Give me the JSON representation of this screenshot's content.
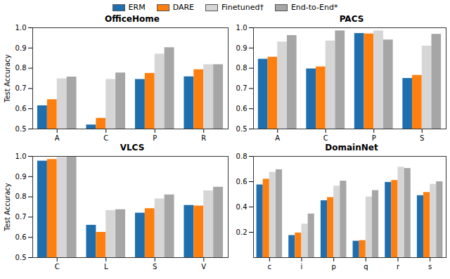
{
  "chart_data": [
    {
      "type": "bar",
      "title": "OfficeHome",
      "y_label": "Test Accuracy",
      "categories": [
        "A",
        "C",
        "P",
        "R"
      ],
      "series": [
        {
          "name": "ERM",
          "color": "#1f6fae",
          "values": [
            0.615,
            0.52,
            0.745,
            0.758
          ]
        },
        {
          "name": "DARE",
          "color": "#ff7f0e",
          "values": [
            0.645,
            0.553,
            0.775,
            0.793
          ]
        },
        {
          "name": "Finetuned†",
          "color": "#d6d6d6",
          "values": [
            0.748,
            0.745,
            0.87,
            0.818
          ]
        },
        {
          "name": "End-to-End*",
          "color": "#a6a6a6",
          "values": [
            0.757,
            0.777,
            0.902,
            0.818
          ]
        }
      ],
      "ylim": [
        0.5,
        1.0
      ],
      "yticks": [
        0.5,
        0.6,
        0.7,
        0.8,
        0.9,
        {
          "value": 1.0,
          "label": "1.0"
        }
      ],
      "grid": false
    },
    {
      "type": "bar",
      "title": "PACS",
      "legend": "upper right",
      "categories": [
        "A",
        "C",
        "P",
        "S"
      ],
      "series": [
        {
          "name": "ERM",
          "color": "#1f6fae",
          "values": [
            0.845,
            0.797,
            0.972,
            0.75
          ]
        },
        {
          "name": "DARE",
          "color": "#ff7f0e",
          "values": [
            0.855,
            0.807,
            0.97,
            0.765
          ]
        },
        {
          "name": "Finetuned†",
          "color": "#d6d6d6",
          "values": [
            0.93,
            0.935,
            0.985,
            0.91
          ]
        },
        {
          "name": "End-to-End*",
          "color": "#a6a6a6",
          "values": [
            0.962,
            0.985,
            0.94,
            0.968
          ]
        }
      ],
      "ylim": [
        0.5,
        1.0
      ],
      "yticks": [
        0.5,
        0.6,
        0.7,
        0.8,
        0.9,
        {
          "value": 1.0,
          "label": "1.0"
        }
      ],
      "grid": false
    },
    {
      "type": "bar",
      "title": "VLCS",
      "y_label": "Test Accuracy",
      "categories": [
        "C",
        "L",
        "S",
        "V"
      ],
      "series": [
        {
          "name": "ERM",
          "color": "#1f6fae",
          "values": [
            0.977,
            0.66,
            0.72,
            0.758
          ]
        },
        {
          "name": "DARE",
          "color": "#ff7f0e",
          "values": [
            0.985,
            0.625,
            0.742,
            0.755
          ]
        },
        {
          "name": "Finetuned†",
          "color": "#d6d6d6",
          "values": [
            0.995,
            0.733,
            0.79,
            0.83
          ]
        },
        {
          "name": "End-to-End*",
          "color": "#a6a6a6",
          "values": [
            1.0,
            0.737,
            0.81,
            0.848
          ]
        }
      ],
      "ylim": [
        0.5,
        1.0
      ],
      "yticks": [
        0.5,
        0.6,
        0.7,
        0.8,
        0.9,
        {
          "value": 1.0,
          "label": "1.0"
        }
      ],
      "grid": false
    },
    {
      "type": "bar",
      "title": "DomainNet",
      "categories": [
        "c",
        "i",
        "p",
        "q",
        "r",
        "s"
      ],
      "series": [
        {
          "name": "ERM",
          "color": "#1f6fae",
          "values": [
            0.575,
            0.175,
            0.45,
            0.13,
            0.595,
            0.49
          ]
        },
        {
          "name": "DARE",
          "color": "#ff7f0e",
          "values": [
            0.62,
            0.195,
            0.475,
            0.135,
            0.61,
            0.515
          ]
        },
        {
          "name": "Finetuned†",
          "color": "#d6d6d6",
          "values": [
            0.675,
            0.265,
            0.565,
            0.48,
            0.715,
            0.58
          ]
        },
        {
          "name": "End-to-End*",
          "color": "#a6a6a6",
          "values": [
            0.695,
            0.345,
            0.605,
            0.53,
            0.705,
            0.6
          ]
        }
      ],
      "ylim": [
        0,
        0.8
      ],
      "yticks": [
        0.2,
        0.4,
        0.6,
        0.8
      ],
      "grid": false
    }
  ]
}
